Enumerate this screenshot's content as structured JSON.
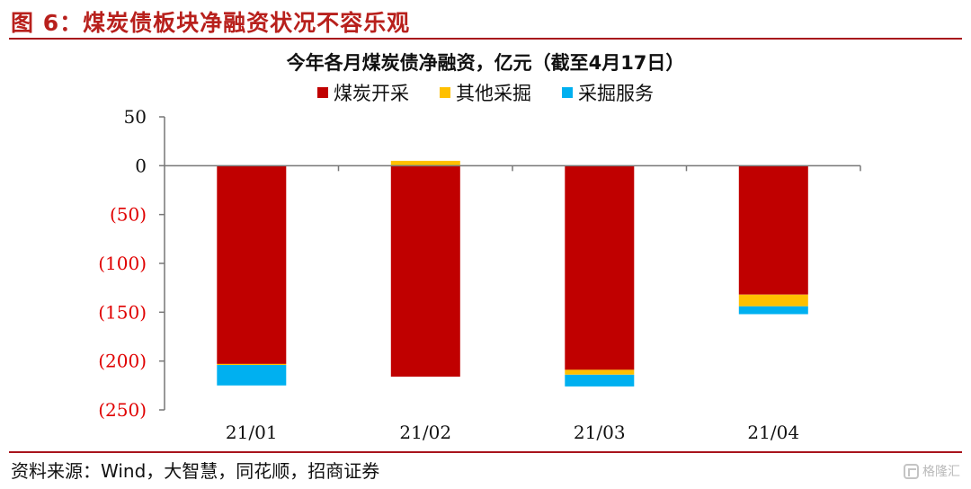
{
  "figure": {
    "title": "图 6：煤炭债板块净融资状况不容乐观",
    "source": "资料来源：Wind，大智慧，同花顺，招商证券",
    "watermark": "格隆汇"
  },
  "chart_data": {
    "type": "bar",
    "stacked": true,
    "title": "今年各月煤炭债净融资，亿元（截至4月17日）",
    "xlabel": "",
    "ylabel": "",
    "categories": [
      "21/01",
      "21/02",
      "21/03",
      "21/04"
    ],
    "series": [
      {
        "name": "煤炭开采",
        "color": "#c00000",
        "values": [
          -203,
          -216,
          -209,
          -132
        ]
      },
      {
        "name": "其他采掘",
        "color": "#ffc000",
        "values": [
          -1,
          5,
          -5,
          -12
        ]
      },
      {
        "name": "采掘服务",
        "color": "#00b0f0",
        "values": [
          -21,
          0,
          -12,
          -8
        ]
      }
    ],
    "ylim": [
      -250,
      50
    ],
    "yticks": [
      50,
      0,
      -50,
      -100,
      -150,
      -200,
      -250
    ],
    "ytick_labels": [
      "50",
      "0",
      "(50)",
      "(100)",
      "(150)",
      "(200)",
      "(250)"
    ],
    "negative_tick_color": "#e00000",
    "legend_position": "top",
    "grid": false
  }
}
